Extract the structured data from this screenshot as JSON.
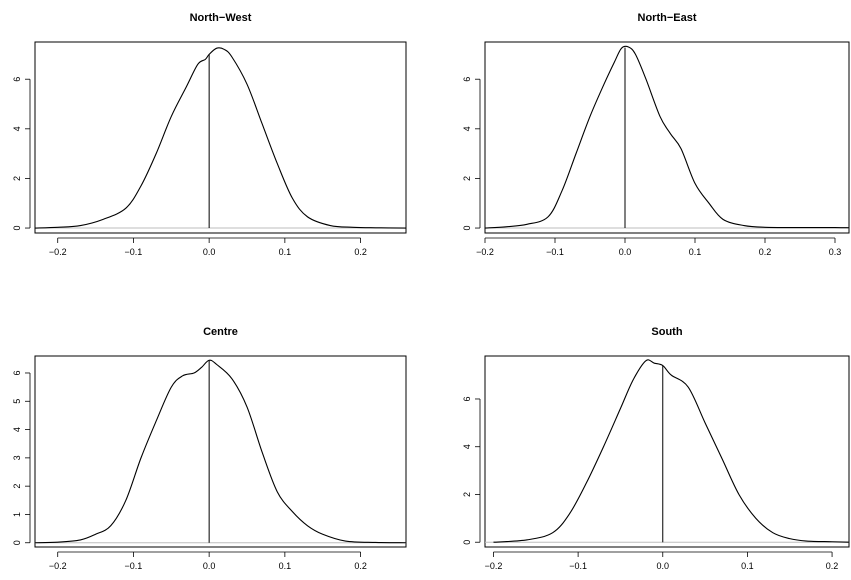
{
  "chart_data": [
    {
      "type": "line",
      "title": "North−West",
      "xlim": [
        -0.23,
        0.26
      ],
      "ylim": [
        -0.2,
        7.5
      ],
      "xticks": [
        -0.2,
        -0.1,
        0.0,
        0.1,
        0.2
      ],
      "xtick_labels": [
        "−0.2",
        "−0.1",
        "0.0",
        "0.1",
        "0.2"
      ],
      "yticks": [
        0,
        2,
        4,
        6
      ],
      "ytick_labels": [
        "0",
        "2",
        "4",
        "6"
      ],
      "vline": 0.0,
      "baseline": 0,
      "series": [
        {
          "x": [
            -0.23,
            -0.2,
            -0.17,
            -0.14,
            -0.11,
            -0.09,
            -0.07,
            -0.05,
            -0.03,
            -0.015,
            -0.005,
            0.0,
            0.01,
            0.02,
            0.03,
            0.05,
            0.07,
            0.09,
            0.11,
            0.13,
            0.16,
            0.19,
            0.22,
            0.26
          ],
          "y": [
            0.0,
            0.03,
            0.1,
            0.35,
            0.8,
            1.7,
            3.0,
            4.5,
            5.7,
            6.6,
            6.8,
            7.0,
            7.25,
            7.2,
            6.9,
            5.8,
            4.2,
            2.6,
            1.2,
            0.45,
            0.1,
            0.03,
            0.01,
            0.0
          ]
        }
      ]
    },
    {
      "type": "line",
      "title": "North−East",
      "xlim": [
        -0.2,
        0.32
      ],
      "ylim": [
        -0.2,
        7.5
      ],
      "xticks": [
        -0.2,
        -0.1,
        0.0,
        0.1,
        0.2,
        0.3
      ],
      "xtick_labels": [
        "−0.2",
        "−0.1",
        "0.0",
        "0.1",
        "0.2",
        "0.3"
      ],
      "yticks": [
        0,
        2,
        4,
        6
      ],
      "ytick_labels": [
        "0",
        "2",
        "4",
        "6"
      ],
      "vline": 0.0,
      "baseline": 0,
      "series": [
        {
          "x": [
            -0.2,
            -0.17,
            -0.14,
            -0.11,
            -0.09,
            -0.07,
            -0.05,
            -0.03,
            -0.015,
            -0.005,
            0.005,
            0.015,
            0.03,
            0.05,
            0.065,
            0.08,
            0.1,
            0.12,
            0.14,
            0.17,
            0.2,
            0.25,
            0.3,
            0.32
          ],
          "y": [
            0.0,
            0.05,
            0.15,
            0.45,
            1.5,
            3.0,
            4.5,
            5.8,
            6.7,
            7.25,
            7.3,
            7.0,
            6.0,
            4.5,
            3.8,
            3.2,
            1.8,
            1.0,
            0.35,
            0.1,
            0.03,
            0.02,
            0.02,
            0.01
          ]
        }
      ]
    },
    {
      "type": "line",
      "title": "Centre",
      "xlim": [
        -0.23,
        0.26
      ],
      "ylim": [
        -0.15,
        6.6
      ],
      "xticks": [
        -0.2,
        -0.1,
        0.0,
        0.1,
        0.2
      ],
      "xtick_labels": [
        "−0.2",
        "−0.1",
        "0.0",
        "0.1",
        "0.2"
      ],
      "yticks": [
        0,
        1,
        2,
        3,
        4,
        5,
        6
      ],
      "ytick_labels": [
        "0",
        "1",
        "2",
        "3",
        "4",
        "5",
        "6"
      ],
      "vline": 0.0,
      "baseline": 0,
      "series": [
        {
          "x": [
            -0.23,
            -0.2,
            -0.17,
            -0.15,
            -0.13,
            -0.11,
            -0.09,
            -0.07,
            -0.05,
            -0.035,
            -0.02,
            -0.01,
            0.0,
            0.01,
            0.03,
            0.05,
            0.07,
            0.09,
            0.11,
            0.13,
            0.15,
            0.18,
            0.22,
            0.26
          ],
          "y": [
            0.0,
            0.02,
            0.1,
            0.3,
            0.6,
            1.5,
            3.0,
            4.3,
            5.5,
            5.9,
            6.0,
            6.2,
            6.45,
            6.3,
            5.8,
            4.8,
            3.2,
            1.8,
            1.1,
            0.6,
            0.3,
            0.06,
            0.01,
            0.0
          ]
        }
      ]
    },
    {
      "type": "line",
      "title": "South",
      "xlim": [
        -0.21,
        0.22
      ],
      "ylim": [
        -0.2,
        7.8
      ],
      "xticks": [
        -0.2,
        -0.1,
        0.0,
        0.1,
        0.2
      ],
      "xtick_labels": [
        "−0.2",
        "−0.1",
        "0.0",
        "0.1",
        "0.2"
      ],
      "yticks": [
        0,
        2,
        4,
        6
      ],
      "ytick_labels": [
        "0",
        "2",
        "4",
        "6"
      ],
      "vline": 0.0,
      "baseline": 0,
      "series": [
        {
          "x": [
            -0.2,
            -0.16,
            -0.13,
            -0.11,
            -0.09,
            -0.07,
            -0.05,
            -0.035,
            -0.02,
            -0.01,
            0.0,
            0.01,
            0.03,
            0.05,
            0.07,
            0.09,
            0.11,
            0.13,
            0.15,
            0.17,
            0.2,
            0.22
          ],
          "y": [
            0.0,
            0.1,
            0.4,
            1.2,
            2.5,
            4.0,
            5.6,
            6.8,
            7.6,
            7.5,
            7.4,
            7.0,
            6.5,
            5.0,
            3.5,
            2.0,
            1.0,
            0.4,
            0.15,
            0.05,
            0.02,
            0.0
          ]
        }
      ]
    }
  ]
}
